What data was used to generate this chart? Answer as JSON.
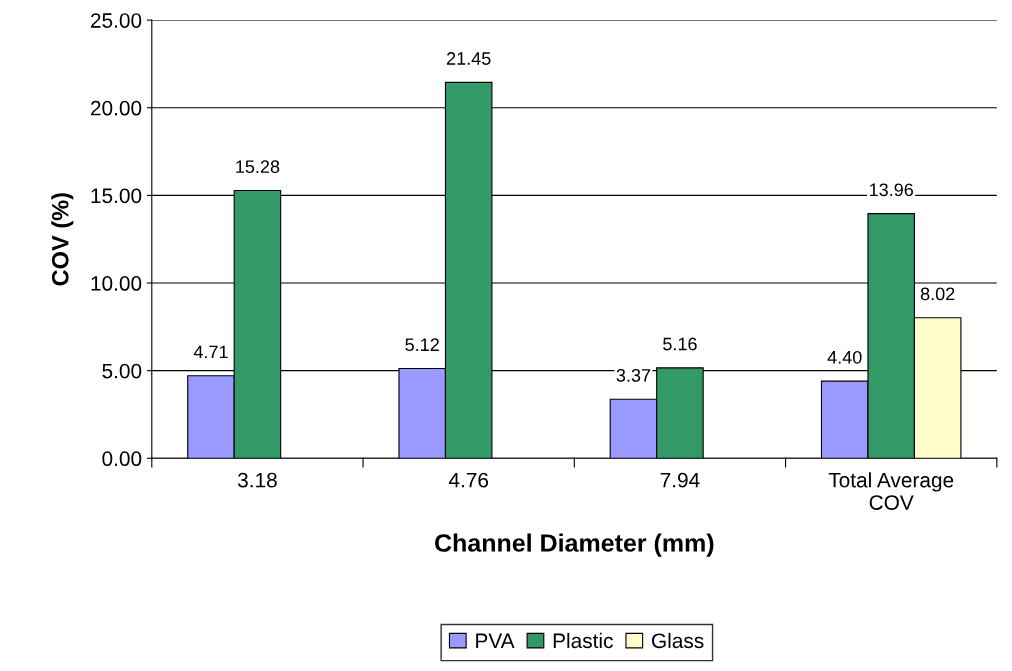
{
  "chart_data": {
    "type": "bar",
    "xlabel": "Channel Diameter (mm)",
    "ylabel": "COV (%)",
    "categories": [
      "3.18",
      "4.76",
      "7.94",
      "Total Average\nCOV"
    ],
    "series": [
      {
        "name": "PVA",
        "color": "#9999ff",
        "values": [
          4.71,
          5.12,
          3.37,
          4.4
        ],
        "value_labels": [
          "4.71",
          "5.12",
          "3.37",
          "4.40"
        ]
      },
      {
        "name": "Plastic",
        "color": "#339966",
        "values": [
          15.28,
          21.45,
          5.16,
          13.96
        ],
        "value_labels": [
          "15.28",
          "21.45",
          "5.16",
          "13.96"
        ]
      },
      {
        "name": "Glass",
        "color": "#ffffcc",
        "values": [
          null,
          null,
          null,
          8.02
        ],
        "value_labels": [
          null,
          null,
          null,
          "8.02"
        ]
      }
    ],
    "ylim": [
      0,
      25
    ],
    "yticks": [
      {
        "value": 0,
        "label": "0.00"
      },
      {
        "value": 5,
        "label": "5.00"
      },
      {
        "value": 10,
        "label": "10.00"
      },
      {
        "value": 15,
        "label": "15.00"
      },
      {
        "value": 20,
        "label": "20.00"
      },
      {
        "value": 25,
        "label": "25.00"
      }
    ],
    "grid": "y",
    "legend": "bottom"
  }
}
